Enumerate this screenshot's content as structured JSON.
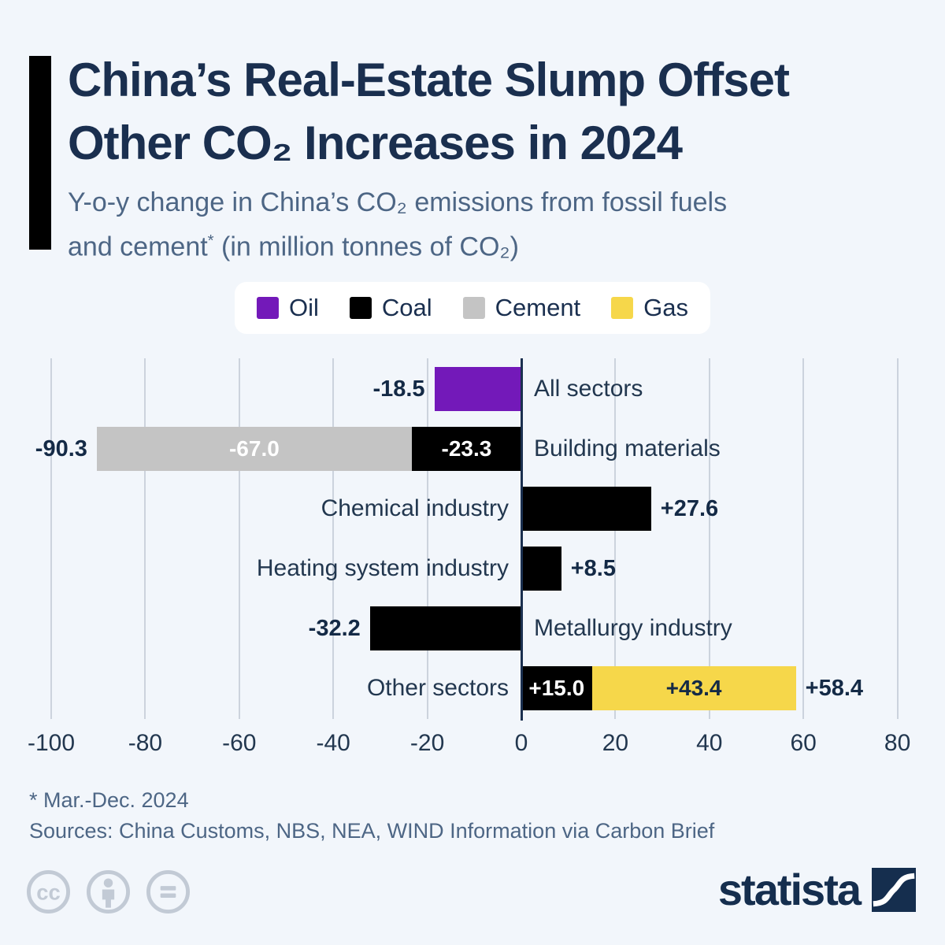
{
  "header": {
    "title_line1": "China’s Real-Estate Slump Offset",
    "title_line2": "Other CO₂ Increases in 2024",
    "subtitle_line1": "Y-o-y change in China’s CO₂ emissions from fossil fuels",
    "subtitle_line2_pre": "and cement",
    "subtitle_line2_sup": "*",
    "subtitle_line2_post": " (in million tonnes of CO₂)"
  },
  "legend": {
    "items": [
      {
        "label": "Oil",
        "color": "#7319b9"
      },
      {
        "label": "Coal",
        "color": "#000000"
      },
      {
        "label": "Cement",
        "color": "#c4c4c4"
      },
      {
        "label": "Gas",
        "color": "#f6d74a"
      }
    ]
  },
  "chart_data": {
    "type": "bar",
    "orientation": "horizontal",
    "title": "Y-o-y change in China’s CO₂ emissions from fossil fuels and cement (in million tonnes of CO₂)",
    "xlabel": "",
    "ylabel": "",
    "xlim": [
      -105,
      85
    ],
    "x_ticks": [
      -100,
      -80,
      -60,
      -40,
      -20,
      0,
      20,
      40,
      60,
      80
    ],
    "grid": true,
    "legend_position": "top",
    "series_colors": {
      "Oil": "#7319b9",
      "Coal": "#000000",
      "Cement": "#c4c4c4",
      "Gas": "#f6d74a"
    },
    "segment_label_colors": {
      "Oil": "#ffffff",
      "Coal": "#ffffff",
      "Cement": "#ffffff",
      "Gas": "#142a46"
    },
    "rows": [
      {
        "category": "All sectors",
        "category_side": "right",
        "total": -18.5,
        "total_label": "-18.5",
        "segments": [
          {
            "series": "Oil",
            "value": -18.5,
            "label": null
          }
        ]
      },
      {
        "category": "Building materials",
        "category_side": "right",
        "total": -90.3,
        "total_label": "-90.3",
        "segments": [
          {
            "series": "Cement",
            "value": -67.0,
            "label": "-67.0"
          },
          {
            "series": "Coal",
            "value": -23.3,
            "label": "-23.3"
          }
        ]
      },
      {
        "category": "Chemical industry",
        "category_side": "left",
        "total": 27.6,
        "total_label": "+27.6",
        "segments": [
          {
            "series": "Coal",
            "value": 27.6,
            "label": null
          }
        ]
      },
      {
        "category": "Heating system industry",
        "category_side": "left",
        "total": 8.5,
        "total_label": "+8.5",
        "segments": [
          {
            "series": "Coal",
            "value": 8.5,
            "label": null
          }
        ]
      },
      {
        "category": "Metallurgy industry",
        "category_side": "right",
        "total": -32.2,
        "total_label": "-32.2",
        "segments": [
          {
            "series": "Coal",
            "value": -32.2,
            "label": null
          }
        ]
      },
      {
        "category": "Other sectors",
        "category_side": "left",
        "total": 58.4,
        "total_label": "+58.4",
        "segments": [
          {
            "series": "Coal",
            "value": 15.0,
            "label": "+15.0"
          },
          {
            "series": "Gas",
            "value": 43.4,
            "label": "+43.4"
          }
        ]
      }
    ]
  },
  "footer": {
    "footnote": "* Mar.-Dec. 2024",
    "sources": "Sources: China Customs, NBS, NEA, WIND Information via Carbon Brief"
  },
  "branding": {
    "logo_text": "statista",
    "license_icons": [
      "cc-icon",
      "person-icon",
      "equals-icon"
    ]
  },
  "colors": {
    "background": "#f2f6fb",
    "title": "#1a2f4f",
    "subtitle": "#4d6685",
    "accent_bar": "#000000",
    "gridline": "#ccd3dd",
    "zero_line": "#1a2f4f",
    "value_label": "#142a46",
    "legend_bg": "#ffffff",
    "license_icon": "#c2cad5",
    "logo": "#152e4e"
  }
}
